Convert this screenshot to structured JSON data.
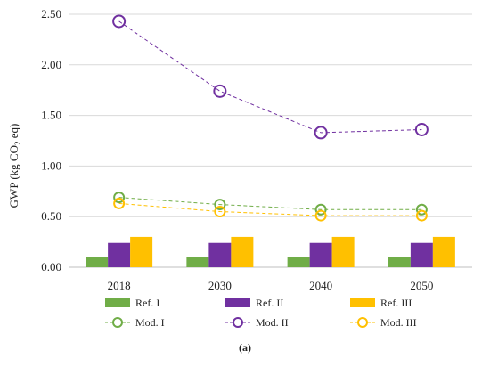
{
  "chart_data": {
    "type": "bar",
    "categories": [
      "2018",
      "2030",
      "2040",
      "2050"
    ],
    "ylabel_prefix": "GWP (kg CO",
    "ylabel_sub": "2",
    "ylabel_suffix": " eq)",
    "ylim": [
      0,
      2.5
    ],
    "yticks": [
      "0.00",
      "0.50",
      "1.00",
      "1.50",
      "2.00",
      "2.50"
    ],
    "grid": true,
    "legend_position": "bottom",
    "caption": "(a)",
    "bar_series": [
      {
        "name": "Ref. I",
        "color": "#70ad47",
        "values": [
          0.1,
          0.1,
          0.1,
          0.1
        ]
      },
      {
        "name": "Ref. II",
        "color": "#7030a0",
        "values": [
          0.24,
          0.24,
          0.24,
          0.24
        ]
      },
      {
        "name": "Ref. III",
        "color": "#ffc000",
        "values": [
          0.3,
          0.3,
          0.3,
          0.3
        ]
      }
    ],
    "line_series": [
      {
        "name": "Mod. I",
        "color": "#70ad47",
        "values": [
          0.69,
          0.62,
          0.57,
          0.57
        ]
      },
      {
        "name": "Mod. II",
        "color": "#7030a0",
        "values": [
          2.43,
          1.74,
          1.33,
          1.36
        ]
      },
      {
        "name": "Mod. III",
        "color": "#ffc000",
        "values": [
          0.63,
          0.55,
          0.51,
          0.51
        ]
      }
    ]
  }
}
